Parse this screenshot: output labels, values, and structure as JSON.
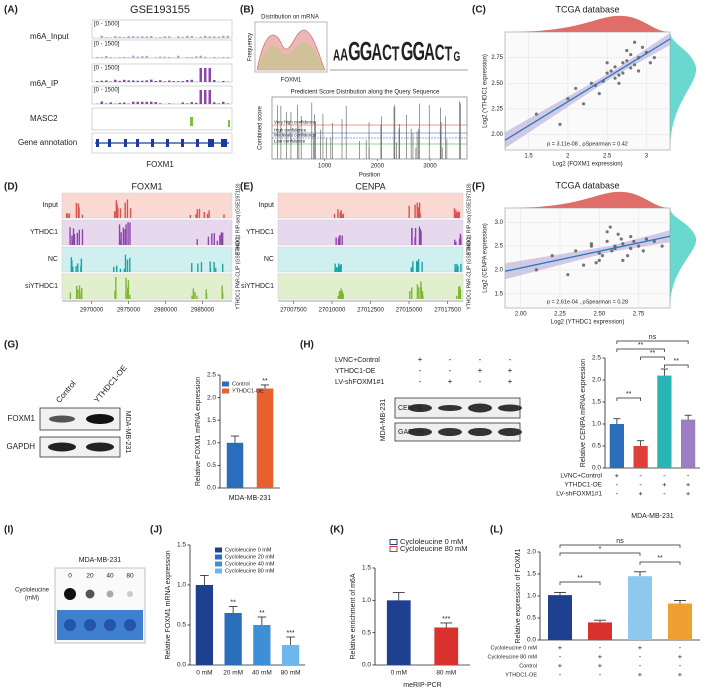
{
  "panels": {
    "A": {
      "label": "(A)",
      "title": "GSE193155",
      "range": "[0 - 1500]",
      "tracks": [
        "m6A_Input",
        "m6A_IP",
        "MASC2",
        "Gene annotation"
      ],
      "gene": "FOXM1"
    },
    "B": {
      "label": "(B)",
      "dist_title": "Distribution on mRNA",
      "dist_ylabel": "Frequency",
      "dist_xlabel": "FOXM1",
      "motif": [
        "A",
        "A",
        "G",
        "G",
        "A",
        "C",
        "T",
        "G",
        "G",
        "A",
        "C",
        "T",
        "G"
      ],
      "score_title": "Predicient Score Distribution along the Query Sequence",
      "score_ylabel": "Combined score",
      "score_xlabel": "Position",
      "score_xlim": [
        0,
        3700
      ],
      "score_xticks": [
        1000,
        2000,
        3000
      ],
      "confidence": [
        "Very high confidence",
        "High confidence",
        "Moderate confidence",
        "Low confidence"
      ]
    },
    "C": {
      "label": "(C)",
      "title": "TCGA database",
      "xlabel": "Log2 (FOXM1 expression)",
      "ylabel": "Log2 (YTHDC1 expression)",
      "stat": "p = 3.11e-08 , ρSpearman = 0.42",
      "xlim": [
        1.2,
        3.3
      ],
      "ylim": [
        1.85,
        3.0
      ],
      "xticks": [
        1.5,
        2,
        2.5,
        3
      ],
      "yticks": [
        {
          "value": 2,
          "label": "2.00"
        },
        2.25,
        {
          "value": 2.5,
          "label": "2.50"
        },
        2.75
      ],
      "x": [
        2.1,
        2.3,
        2.5,
        2.6,
        2.7,
        2.8,
        2.9,
        3.0,
        2.4,
        2.55,
        2.65,
        2.75,
        2.85,
        2.95,
        2.2,
        2.45,
        2.6,
        2.7,
        2.8,
        3.05,
        1.6,
        1.9,
        2.35,
        2.5,
        2.9,
        2.75,
        2.65,
        2.85,
        3.1,
        2.0
      ],
      "y": [
        2.45,
        2.5,
        2.6,
        2.55,
        2.7,
        2.65,
        2.75,
        2.8,
        2.4,
        2.62,
        2.58,
        2.72,
        2.68,
        2.85,
        2.3,
        2.52,
        2.66,
        2.6,
        2.78,
        2.7,
        2.2,
        2.1,
        2.48,
        2.7,
        2.62,
        2.82,
        2.5,
        2.9,
        2.75,
        2.35
      ]
    },
    "D": {
      "label": "(D)",
      "gene": "FOXM1",
      "tracks": [
        "Input",
        "YTHDC1",
        "NC",
        "siYTHDC1"
      ],
      "side": [
        "YTHDC1 RIP-seq (GSE197118)",
        "YTHDC1 PAR-CLIP (GSE78030)"
      ],
      "xlim": [
        2966000,
        2989000
      ],
      "xticks": [
        2970000,
        2975000,
        2980000,
        2985000
      ]
    },
    "E": {
      "label": "(E)",
      "gene": "CENPA",
      "tracks": [
        "Input",
        "YTHDC1",
        "NC",
        "siYTHDC1"
      ],
      "side": [
        "YTHDC1 RIP-seq (GSE197118)",
        "YTHDC1 PAR-CLIP (GSE78030)"
      ],
      "xlim": [
        27006500,
        27018500
      ],
      "xticks": [
        27007500,
        27010000,
        27012500,
        27015000,
        27017500
      ]
    },
    "F": {
      "label": "(F)",
      "title": "TCGA database",
      "xlabel": "Log2 (YTHDC1 expression)",
      "ylabel": "Log2 (CENPA expression)",
      "stat": "p = 2.61e-04 , ρSpearman = 0.28",
      "xlim": [
        1.9,
        2.95
      ],
      "ylim": [
        1.2,
        3.3
      ],
      "xticks": [
        {
          "value": 2,
          "label": "2.00"
        },
        2.25,
        {
          "value": 2.5,
          "label": "2.50"
        },
        2.75
      ],
      "yticks": [
        1.5,
        {
          "value": 2,
          "label": "2.0"
        },
        2.5,
        {
          "value": 3,
          "label": "3.0"
        }
      ],
      "x": [
        2.2,
        2.35,
        2.45,
        2.5,
        2.55,
        2.6,
        2.65,
        2.7,
        2.75,
        2.8,
        2.4,
        2.5,
        2.58,
        2.62,
        2.68,
        2.72,
        2.3,
        2.55,
        2.6,
        2.65,
        2.7,
        2.85,
        2.1,
        2.45,
        2.52,
        2.78,
        2.64,
        2.57,
        2.9,
        2.48
      ],
      "y": [
        2.3,
        2.4,
        2.5,
        2.2,
        2.6,
        2.45,
        2.55,
        2.7,
        2.5,
        2.65,
        2.1,
        2.35,
        2.4,
        2.75,
        2.3,
        2.6,
        1.9,
        2.8,
        2.5,
        2.2,
        2.45,
        2.6,
        2.0,
        2.55,
        2.3,
        2.4,
        2.65,
        2.9,
        2.5,
        2.15
      ]
    },
    "G": {
      "label": "(G)",
      "lanes": [
        "Control",
        "YTHDC1-OE"
      ],
      "proteins": [
        "FOXM1",
        "GAPDH"
      ],
      "cell": "MDA-MB-231",
      "bar": {
        "legend": [
          "Control",
          "YTHDC1-OE"
        ],
        "values": [
          1.0,
          2.2
        ],
        "errors": [
          0.15,
          0.08
        ],
        "colors": [
          "#2a6ebb",
          "#e8602c"
        ],
        "sig": [
          null,
          "**"
        ],
        "ylabel": "Relative FOXM1 mRNA expression",
        "xlabel": "MDA-MB-231",
        "ylim": [
          0,
          2.5
        ],
        "yticks": [
          {
            "value": 0,
            "label": "0.0"
          },
          0.5,
          {
            "value": 1,
            "label": "1.0"
          },
          1.5,
          {
            "value": 2,
            "label": "2.0"
          },
          2.5
        ]
      }
    },
    "H": {
      "label": "(H)",
      "rows": [
        {
          "label": "LVNC+Control",
          "signs": [
            "+",
            "-",
            "-",
            "-"
          ]
        },
        {
          "label": "YTHDC1-OE",
          "signs": [
            "-",
            "-",
            "+",
            "+"
          ]
        },
        {
          "label": "LV-shFOXM1#1",
          "signs": [
            "-",
            "+",
            "-",
            "+"
          ]
        }
      ],
      "proteins": [
        "CENPA",
        "GAPDH"
      ],
      "cell": "MDA-MB-231",
      "bar": {
        "values": [
          1.0,
          0.5,
          2.1,
          1.1
        ],
        "errors": [
          0.12,
          0.12,
          0.15,
          0.1
        ],
        "colors": [
          "#2a6ebb",
          "#e0403a",
          "#2ab5b5",
          "#9b7fc4"
        ],
        "ylabel": "Relative CENPA mRNA expression",
        "xlabel": "MDA-MB-231",
        "ylim": [
          0,
          2.5
        ],
        "yticks": [
          {
            "value": 0,
            "label": "0.0"
          },
          0.5,
          {
            "value": 1,
            "label": "1.0"
          },
          1.5,
          {
            "value": 2,
            "label": "2.0"
          },
          2.5
        ],
        "sign_rows": [
          {
            "label": "LVNC+Control",
            "signs": [
              "+",
              "-",
              "-",
              "-"
            ]
          },
          {
            "label": "YTHDC1-OE",
            "signs": [
              "-",
              "-",
              "+",
              "+"
            ]
          },
          {
            "label": "LV-shFOXM1#1",
            "signs": [
              "-",
              "+",
              "-",
              "+"
            ]
          }
        ],
        "brackets": [
          "**",
          "**",
          "**",
          "ns",
          "**"
        ]
      }
    },
    "I": {
      "label": "(I)",
      "cell": "MDA-MB-231",
      "treatment": [
        "Cycloleucine",
        "(mM)"
      ],
      "doses": [
        "0",
        "20",
        "40",
        "80"
      ]
    },
    "J": {
      "label": "(J)",
      "bar": {
        "legend": [
          "Cycloleucine 0 mM",
          "Cycloleucine 20 mM",
          "Cycloleucine 40 mM",
          "Cycloleucine 80 mM"
        ],
        "categories": [
          "0 mM",
          "20 mM",
          "40 mM",
          "80 mM"
        ],
        "values": [
          1.0,
          0.65,
          0.5,
          0.25
        ],
        "errors": [
          0.12,
          0.08,
          0.1,
          0.1
        ],
        "colors": [
          "#1f3f8f",
          "#2a6ebb",
          "#3e8fd6",
          "#6cb8ee"
        ],
        "sig": [
          null,
          "**",
          "**",
          "***"
        ],
        "ylabel": "Relative FOXM1 mRNA expression",
        "ylim": [
          0,
          1.5
        ],
        "yticks": [
          {
            "value": 0,
            "label": "0.0"
          },
          0.5,
          {
            "value": 1,
            "label": "1.0"
          },
          1.5
        ]
      }
    },
    "K": {
      "label": "(K)",
      "bar": {
        "legend": [
          "Cycloleucine 0 mM",
          "Cycloleucine 80 mM"
        ],
        "categories": [
          "0 mM",
          "80 mM"
        ],
        "values": [
          1.0,
          0.58
        ],
        "errors": [
          0.12,
          0.07
        ],
        "colors": [
          "#1f3f8f",
          "#d9312e"
        ],
        "sig": [
          null,
          "***"
        ],
        "ylabel": "Relative enrichment of m6A",
        "xlabel": "meRIP-PCR",
        "ylim": [
          0,
          1.5
        ],
        "yticks": [
          {
            "value": 0,
            "label": "0.0"
          },
          0.5,
          {
            "value": 1,
            "label": "1.0"
          },
          1.5
        ]
      }
    },
    "L": {
      "label": "(L)",
      "bar": {
        "values": [
          1.02,
          0.4,
          1.45,
          0.83
        ],
        "errors": [
          0.06,
          0.05,
          0.1,
          0.07
        ],
        "colors": [
          "#1f3f8f",
          "#d9312e",
          "#8ec8ee",
          "#f0a030"
        ],
        "ylabel": "Relative expression of FOXM1",
        "ylim": [
          0,
          2.0
        ],
        "yticks": [
          {
            "value": 0,
            "label": "0.0"
          },
          0.5,
          {
            "value": 1,
            "label": "1.0"
          },
          1.5,
          {
            "value": 2,
            "label": "2.0"
          }
        ],
        "sign_rows": [
          {
            "label": "Cycloleucine 0 mM",
            "signs": [
              "+",
              "-",
              "+",
              "-"
            ]
          },
          {
            "label": "Cycloleucine 80 mM",
            "signs": [
              "-",
              "+",
              "-",
              "+"
            ]
          },
          {
            "label": "Control",
            "signs": [
              "+",
              "+",
              "-",
              "-"
            ]
          },
          {
            "label": "YTHDC1-OE",
            "signs": [
              "-",
              "-",
              "+",
              "+"
            ]
          }
        ],
        "brackets": [
          "**",
          "*",
          "ns",
          "**"
        ]
      }
    }
  }
}
